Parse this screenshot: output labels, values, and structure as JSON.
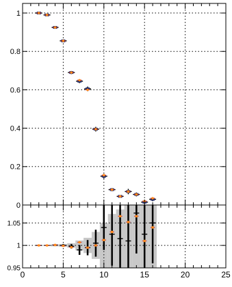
{
  "chart_data": [
    {
      "type": "scatter",
      "panel": "main",
      "xlim": [
        0,
        25
      ],
      "ylim": [
        0,
        1.05
      ],
      "grid": true,
      "x_ticks": [],
      "y_ticks": [
        {
          "value": 0,
          "label": "0"
        },
        {
          "value": 0.2,
          "label": "0.2"
        },
        {
          "value": 0.4,
          "label": "0.4"
        },
        {
          "value": 0.6,
          "label": "0.6"
        },
        {
          "value": 0.8,
          "label": "0.8"
        },
        {
          "value": 1,
          "label": "1"
        }
      ],
      "series": [
        {
          "style": "reference-black-cross",
          "x": [
            2,
            3,
            4,
            5,
            6,
            7,
            8,
            9,
            10,
            11,
            12,
            13,
            14,
            15,
            16
          ],
          "y": [
            1.0,
            0.99,
            0.925,
            0.855,
            0.69,
            0.645,
            0.605,
            0.395,
            0.15,
            0.08,
            0.045,
            0.07,
            0.055,
            0.015,
            0.03
          ],
          "yerr": [
            0.004,
            0.005,
            0.006,
            0.007,
            0.008,
            0.01,
            0.012,
            0.012,
            0.012,
            0.008,
            0.006,
            0.014,
            0.01,
            0.006,
            0.01
          ]
        },
        {
          "style": "orange-marker",
          "x": [
            2,
            3,
            4,
            5,
            6,
            7,
            8,
            9,
            10,
            11,
            12,
            13,
            14,
            15,
            16
          ],
          "y": [
            1.0,
            0.99,
            0.925,
            0.855,
            0.69,
            0.65,
            0.6,
            0.395,
            0.155,
            0.08,
            0.045,
            0.07,
            0.055,
            0.02,
            0.035
          ]
        }
      ]
    },
    {
      "type": "scatter",
      "panel": "ratio",
      "xlim": [
        0,
        25
      ],
      "ylim": [
        0.95,
        1.09
      ],
      "grid": true,
      "x_ticks": [
        {
          "value": 0,
          "label": "0"
        },
        {
          "value": 5,
          "label": "5"
        },
        {
          "value": 10,
          "label": "10"
        },
        {
          "value": 15,
          "label": "15"
        },
        {
          "value": 20,
          "label": "20"
        },
        {
          "value": 25,
          "label": "25"
        }
      ],
      "y_ticks": [
        {
          "value": 0.95,
          "label": "0.95"
        },
        {
          "value": 1,
          "label": "1"
        },
        {
          "value": 1.05,
          "label": "1.05"
        }
      ],
      "uncertainty_band": {
        "color": "#c8c8c8",
        "x": [
          2,
          3,
          4,
          5,
          6,
          7,
          8,
          9,
          10,
          11,
          12,
          13,
          14,
          15,
          16
        ],
        "half_width": [
          0.0005,
          0.001,
          0.002,
          0.003,
          0.005,
          0.011,
          0.017,
          0.03,
          0.05,
          0.07,
          0.08,
          0.09,
          0.09,
          0.09,
          0.09
        ]
      },
      "series": [
        {
          "style": "ratio-black-cross",
          "x": [
            2,
            3,
            4,
            5,
            6,
            7,
            8,
            9,
            10,
            11,
            12,
            13,
            14,
            15,
            16
          ],
          "y": [
            1.0,
            1.0,
            1.001,
            1.0,
            0.998,
            0.99,
            0.995,
            1.005,
            1.04,
            1.025,
            1.015,
            1.01,
            1.072,
            1.025,
            1.05
          ],
          "yerr": [
            0.0005,
            0.001,
            0.002,
            0.003,
            0.005,
            0.011,
            0.017,
            0.03,
            0.05,
            0.07,
            0.08,
            0.09,
            0.09,
            0.09,
            0.09
          ]
        },
        {
          "style": "ratio-orange-marker",
          "x": [
            2,
            3,
            4,
            5,
            6,
            7,
            8,
            9,
            10,
            11,
            12,
            13,
            14,
            15,
            16
          ],
          "y": [
            1.0,
            1.0,
            1.001,
            0.999,
            0.996,
            1.007,
            0.995,
            1.0,
            1.012,
            1.03,
            1.065,
            1.052,
            1.065,
            1.01,
            1.04
          ]
        }
      ]
    }
  ]
}
